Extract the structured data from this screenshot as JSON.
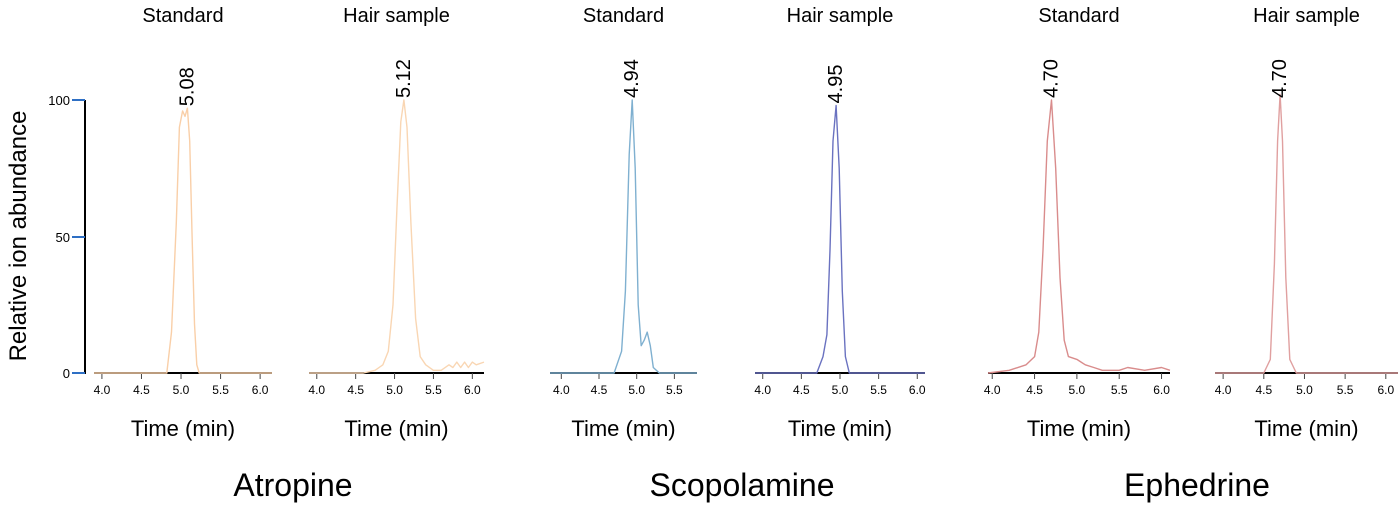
{
  "ylabel": "Relative ion abundance",
  "yticks": [
    "0",
    "50",
    "100"
  ],
  "xlabel": "Time (min)",
  "compounds": [
    {
      "name": "Atropine"
    },
    {
      "name": "Scopolamine"
    },
    {
      "name": "Ephedrine"
    }
  ],
  "chart_data": [
    {
      "type": "line",
      "title": "Standard",
      "compound": "Atropine",
      "peak_label": "5.08",
      "xlabel": "Time (min)",
      "ylabel": "Relative ion abundance",
      "x_ticks": [
        "4.0",
        "4.5",
        "5.0",
        "5.5",
        "6.0"
      ],
      "xlim": [
        3.9,
        6.15
      ],
      "ylim": [
        0,
        100
      ],
      "color": "#f9cfa8",
      "x": [
        3.9,
        4.7,
        4.82,
        4.88,
        4.94,
        4.98,
        5.02,
        5.05,
        5.08,
        5.11,
        5.14,
        5.17,
        5.2,
        5.23,
        6.15
      ],
      "y": [
        0,
        0,
        0,
        15,
        55,
        90,
        96,
        94,
        97,
        85,
        50,
        18,
        3,
        0,
        0
      ]
    },
    {
      "type": "line",
      "title": "Hair sample",
      "compound": "Atropine",
      "peak_label": "5.12",
      "xlabel": "Time (min)",
      "ylabel": "Relative ion abundance",
      "x_ticks": [
        "4.0",
        "4.5",
        "5.0",
        "5.5",
        "6.0"
      ],
      "xlim": [
        3.9,
        6.15
      ],
      "ylim": [
        0,
        100
      ],
      "color": "#f9d6b3",
      "x": [
        3.9,
        4.6,
        4.75,
        4.85,
        4.92,
        4.98,
        5.03,
        5.08,
        5.12,
        5.16,
        5.21,
        5.27,
        5.33,
        5.4,
        5.5,
        5.6,
        5.7,
        5.75,
        5.8,
        5.85,
        5.9,
        5.95,
        6.0,
        6.05,
        6.15
      ],
      "y": [
        0,
        0,
        1,
        3,
        8,
        25,
        60,
        92,
        100,
        90,
        55,
        20,
        6,
        3,
        1,
        1,
        3,
        2,
        4,
        2,
        4,
        2,
        4,
        3,
        4
      ]
    },
    {
      "type": "line",
      "title": "Standard",
      "compound": "Scopolamine",
      "peak_label": "4.94",
      "xlabel": "Time (min)",
      "ylabel": "Relative ion abundance",
      "x_ticks": [
        "4.0",
        "4.5",
        "5.0",
        "5.5"
      ],
      "xlim": [
        3.85,
        5.8
      ],
      "ylim": [
        0,
        100
      ],
      "color": "#7fb0d0",
      "x": [
        3.85,
        4.7,
        4.8,
        4.85,
        4.9,
        4.94,
        4.98,
        5.02,
        5.06,
        5.1,
        5.14,
        5.18,
        5.22,
        5.3,
        5.8
      ],
      "y": [
        0,
        0,
        8,
        30,
        80,
        100,
        75,
        25,
        10,
        12,
        15,
        10,
        2,
        0,
        0
      ]
    },
    {
      "type": "line",
      "title": "Hair sample",
      "compound": "Scopolamine",
      "peak_label": "4.95",
      "xlabel": "Time (min)",
      "ylabel": "Relative ion abundance",
      "x_ticks": [
        "4.0",
        "4.5",
        "5.0",
        "5.5",
        "6.0"
      ],
      "xlim": [
        3.9,
        6.1
      ],
      "ylim": [
        0,
        100
      ],
      "color": "#6a72c0",
      "x": [
        3.9,
        4.7,
        4.78,
        4.83,
        4.87,
        4.91,
        4.95,
        4.99,
        5.03,
        5.07,
        5.12,
        6.1
      ],
      "y": [
        0,
        0,
        6,
        14,
        45,
        85,
        98,
        75,
        30,
        6,
        0,
        0
      ]
    },
    {
      "type": "line",
      "title": "Standard",
      "compound": "Ephedrine",
      "peak_label": "4.70",
      "xlabel": "Time (min)",
      "ylabel": "Relative ion abundance",
      "x_ticks": [
        "4.0",
        "4.5",
        "5.0",
        "5.5",
        "6.0"
      ],
      "xlim": [
        3.95,
        6.1
      ],
      "ylim": [
        0,
        100
      ],
      "color": "#d98c8c",
      "x": [
        3.95,
        4.2,
        4.4,
        4.5,
        4.55,
        4.6,
        4.65,
        4.7,
        4.75,
        4.8,
        4.85,
        4.9,
        5.0,
        5.05,
        5.1,
        5.2,
        5.3,
        5.5,
        5.6,
        5.8,
        6.0,
        6.1
      ],
      "y": [
        0,
        1,
        3,
        6,
        15,
        45,
        85,
        100,
        75,
        35,
        12,
        6,
        5,
        4,
        3,
        2,
        1,
        1,
        2,
        1,
        2,
        1
      ]
    },
    {
      "type": "line",
      "title": "Hair sample",
      "compound": "Ephedrine",
      "peak_label": "4.70",
      "xlabel": "Time (min)",
      "ylabel": "Relative ion abundance",
      "x_ticks": [
        "4.0",
        "4.5",
        "5.0",
        "5.5",
        "6.0"
      ],
      "xlim": [
        3.9,
        6.15
      ],
      "ylim": [
        0,
        100
      ],
      "color": "#e0a0a0",
      "x": [
        3.9,
        4.5,
        4.58,
        4.63,
        4.67,
        4.7,
        4.73,
        4.77,
        4.82,
        4.9,
        6.15
      ],
      "y": [
        0,
        0,
        5,
        40,
        85,
        102,
        85,
        35,
        5,
        0,
        0
      ]
    }
  ]
}
